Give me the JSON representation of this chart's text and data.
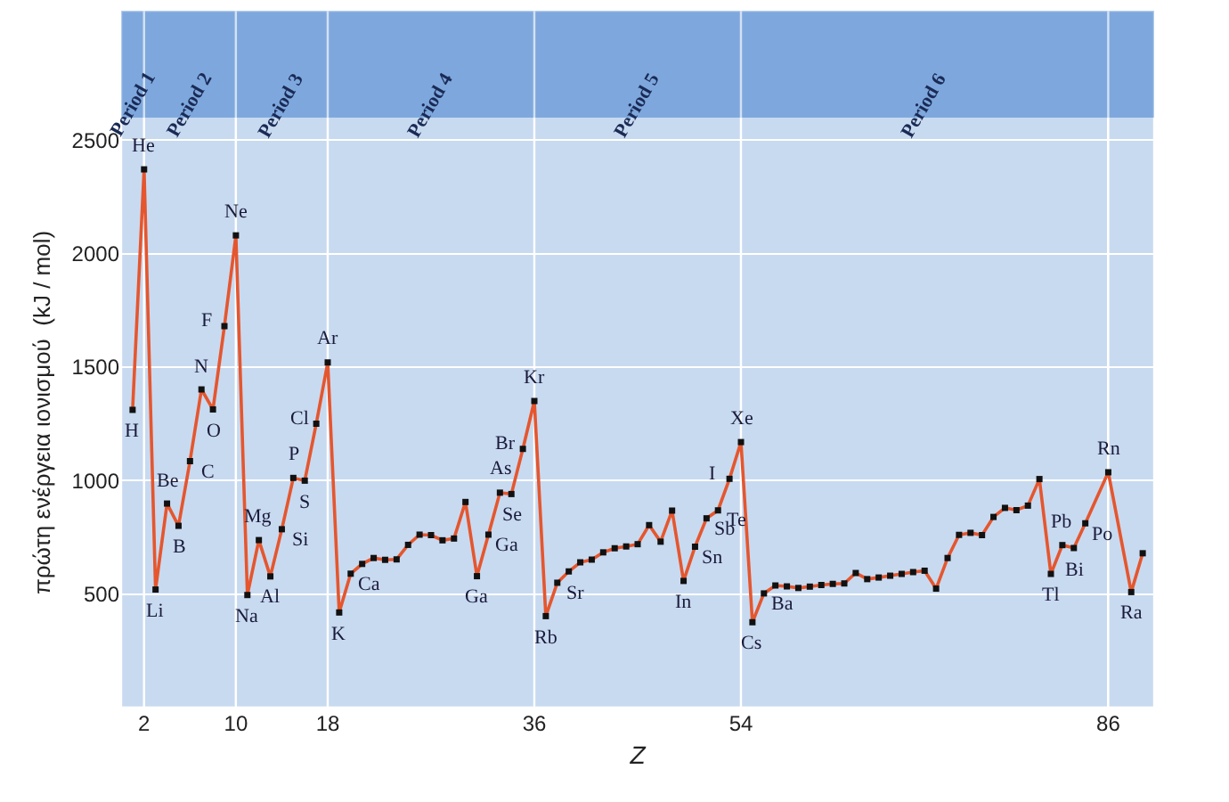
{
  "chart_data": {
    "type": "line",
    "xlabel": "Z",
    "ylabel": "πρώτη ενέργεια ιονισμού  (kJ / mol)",
    "x": [
      1,
      2,
      3,
      4,
      5,
      6,
      7,
      8,
      9,
      10,
      11,
      12,
      13,
      14,
      15,
      16,
      17,
      18,
      19,
      20,
      21,
      22,
      23,
      24,
      25,
      26,
      27,
      28,
      29,
      30,
      31,
      32,
      33,
      34,
      35,
      36,
      37,
      38,
      39,
      40,
      41,
      42,
      43,
      44,
      45,
      46,
      47,
      48,
      49,
      50,
      51,
      52,
      53,
      54,
      55,
      56,
      57,
      58,
      59,
      60,
      61,
      62,
      63,
      64,
      65,
      66,
      67,
      68,
      69,
      70,
      71,
      72,
      73,
      74,
      75,
      76,
      77,
      78,
      79,
      80,
      81,
      82,
      83,
      84,
      86,
      88,
      89
    ],
    "series": [
      {
        "color": "#e5562e",
        "values": [
          1312,
          2372,
          520,
          899,
          801,
          1086,
          1402,
          1314,
          1681,
          2081,
          496,
          738,
          578,
          786,
          1012,
          1000,
          1251,
          1521,
          419,
          590,
          633,
          659,
          651,
          653,
          717,
          762,
          760,
          737,
          745,
          906,
          579,
          762,
          947,
          941,
          1140,
          1351,
          403,
          550,
          600,
          640,
          652,
          684,
          702,
          710,
          720,
          804,
          731,
          868,
          558,
          709,
          834,
          869,
          1008,
          1170,
          376,
          503,
          538,
          534,
          527,
          533,
          540,
          545,
          547,
          593,
          566,
          573,
          581,
          589,
          597,
          603,
          524,
          659,
          761,
          770,
          760,
          840,
          880,
          870,
          890,
          1007,
          589,
          716,
          703,
          812,
          1037,
          509,
          680
        ]
      }
    ],
    "xlim": [
      0,
      90
    ],
    "ylim": [
      0,
      2600
    ],
    "xticks": [
      2,
      10,
      18,
      36,
      54,
      86
    ],
    "yticks": [
      500,
      1000,
      1500,
      2000,
      2500
    ],
    "grid": true,
    "marker": "square",
    "line_style": "solid",
    "bands": [
      {
        "axis": "x",
        "from": 0,
        "to": 2,
        "label": "Period 1",
        "color": "#7ea8dd"
      },
      {
        "axis": "x",
        "from": 2,
        "to": 10,
        "label": "Period 2",
        "color": "#7ea8dd"
      },
      {
        "axis": "x",
        "from": 10,
        "to": 18,
        "label": "Period 3",
        "color": "#7ea8dd"
      },
      {
        "axis": "x",
        "from": 18,
        "to": 36,
        "label": "Period 4",
        "color": "#7ea8dd"
      },
      {
        "axis": "x",
        "from": 36,
        "to": 54,
        "label": "Period 5",
        "color": "#7ea8dd"
      },
      {
        "axis": "x",
        "from": 54,
        "to": 86,
        "label": "Period 6",
        "color": "#7ea8dd"
      },
      {
        "axis": "x",
        "from": 86,
        "to": 90,
        "color": "#7ea8dd"
      }
    ],
    "annotations": [
      {
        "text": "H",
        "x": 1,
        "y": 1312
      },
      {
        "text": "He",
        "x": 2,
        "y": 2372
      },
      {
        "text": "Li",
        "x": 3,
        "y": 520
      },
      {
        "text": "Be",
        "x": 4,
        "y": 899
      },
      {
        "text": "B",
        "x": 5,
        "y": 801
      },
      {
        "text": "C",
        "x": 6,
        "y": 1086
      },
      {
        "text": "N",
        "x": 7,
        "y": 1402
      },
      {
        "text": "O",
        "x": 8,
        "y": 1314
      },
      {
        "text": "F",
        "x": 9,
        "y": 1681
      },
      {
        "text": "Ne",
        "x": 10,
        "y": 2081
      },
      {
        "text": "Na",
        "x": 11,
        "y": 496
      },
      {
        "text": "Mg",
        "x": 12,
        "y": 738
      },
      {
        "text": "Al",
        "x": 13,
        "y": 578
      },
      {
        "text": "Si",
        "x": 14,
        "y": 786
      },
      {
        "text": "P",
        "x": 15,
        "y": 1012
      },
      {
        "text": "S",
        "x": 16,
        "y": 1000
      },
      {
        "text": "Cl",
        "x": 17,
        "y": 1251
      },
      {
        "text": "Ar",
        "x": 18,
        "y": 1521
      },
      {
        "text": "K",
        "x": 19,
        "y": 419
      },
      {
        "text": "Ca",
        "x": 20,
        "y": 590
      },
      {
        "text": "Ga",
        "x": 31,
        "y": 579
      },
      {
        "text": "Ga",
        "x": 32,
        "y": 762
      },
      {
        "text": "As",
        "x": 33,
        "y": 947
      },
      {
        "text": "Se",
        "x": 34,
        "y": 941
      },
      {
        "text": "Br",
        "x": 35,
        "y": 1140
      },
      {
        "text": "Kr",
        "x": 36,
        "y": 1351
      },
      {
        "text": "Rb",
        "x": 37,
        "y": 403
      },
      {
        "text": "Sr",
        "x": 38,
        "y": 550
      },
      {
        "text": "In",
        "x": 49,
        "y": 558
      },
      {
        "text": "Sn",
        "x": 50,
        "y": 709
      },
      {
        "text": "Sb",
        "x": 51,
        "y": 834
      },
      {
        "text": "Te",
        "x": 52,
        "y": 869
      },
      {
        "text": "I",
        "x": 53,
        "y": 1008
      },
      {
        "text": "Xe",
        "x": 54,
        "y": 1170
      },
      {
        "text": "Cs",
        "x": 55,
        "y": 376
      },
      {
        "text": "Ba",
        "x": 56,
        "y": 503
      },
      {
        "text": "Tl",
        "x": 81,
        "y": 589
      },
      {
        "text": "Pb",
        "x": 82,
        "y": 716
      },
      {
        "text": "Bi",
        "x": 83,
        "y": 703
      },
      {
        "text": "Po",
        "x": 84,
        "y": 812
      },
      {
        "text": "Rn",
        "x": 86,
        "y": 1037
      },
      {
        "text": "Ra",
        "x": 88,
        "y": 509
      }
    ]
  }
}
